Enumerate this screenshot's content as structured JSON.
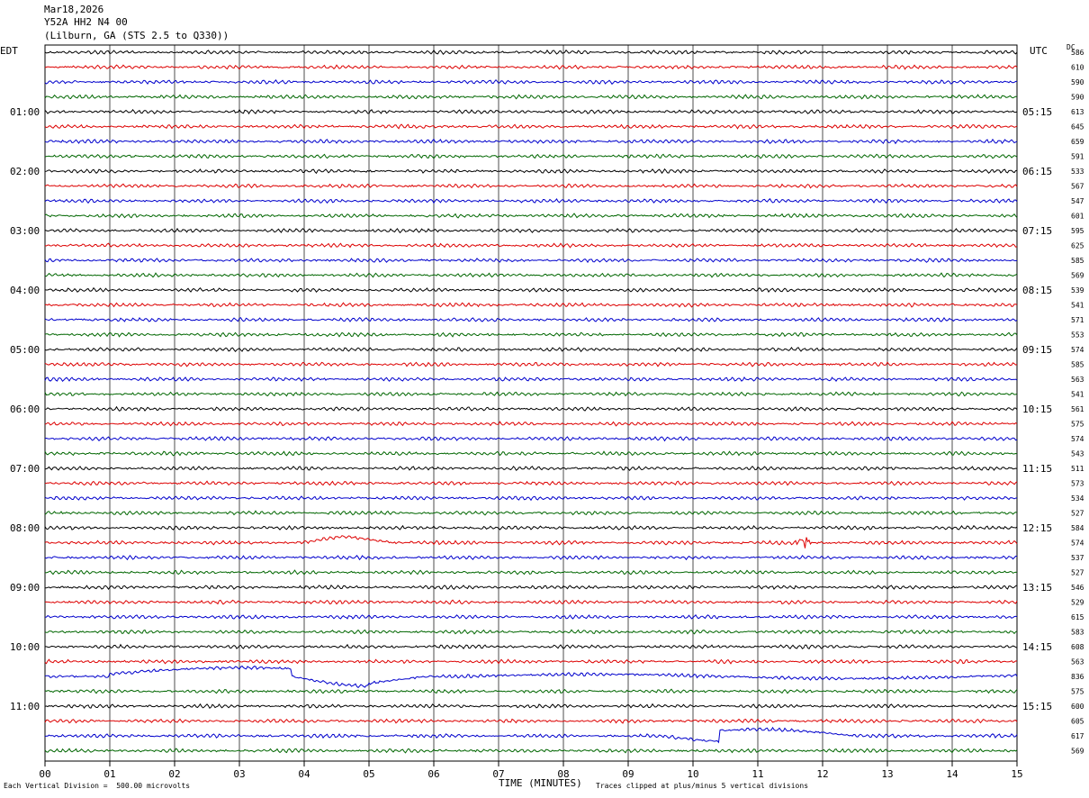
{
  "header": {
    "date": "Mar18,2026",
    "station": "Y52A HH2 N4 00",
    "location": "(Lilburn, GA (STS 2.5 to Q330))"
  },
  "left_axis_label": "EDT",
  "right_axis_label": "UTC",
  "dc_label": "DC",
  "footer": {
    "scale_note": "Each Vertical Division =  500.00 microvolts",
    "xlabel": "TIME (MINUTES)",
    "clip_note": "Traces clipped at plus/minus 5 vertical divisions"
  },
  "colors": {
    "trace_cycle": [
      "#000000",
      "#dd0000",
      "#0000cc",
      "#006600"
    ],
    "grid": "#000000"
  },
  "chart_data": {
    "type": "line",
    "description_free": true,
    "xlim": [
      0,
      15
    ],
    "x_ticks": [
      "00",
      "01",
      "02",
      "03",
      "04",
      "05",
      "06",
      "07",
      "08",
      "09",
      "10",
      "11",
      "12",
      "13",
      "14",
      "15"
    ],
    "left_hour_labels": [
      "01:00",
      "02:00",
      "03:00",
      "04:00",
      "05:00",
      "06:00",
      "07:00",
      "08:00",
      "09:00",
      "10:00",
      "11:00"
    ],
    "right_hour_labels": [
      "05:15",
      "06:15",
      "07:15",
      "08:15",
      "09:15",
      "10:15",
      "11:15",
      "12:15",
      "13:15",
      "14:15",
      "15:15"
    ],
    "traces_per_hour": 4,
    "trace_count": 48,
    "dc_offsets": [
      586,
      610,
      590,
      590,
      613,
      645,
      659,
      591,
      533,
      567,
      547,
      601,
      595,
      625,
      585,
      569,
      539,
      541,
      571,
      553,
      574,
      585,
      563,
      541,
      561,
      575,
      574,
      543,
      511,
      573,
      534,
      527,
      584,
      574,
      537,
      527,
      546,
      529,
      615,
      583,
      608,
      563,
      836,
      575,
      600,
      605,
      617,
      569
    ],
    "events": [
      {
        "trace": 33,
        "shape": "bump",
        "x_start": 3.8,
        "x_end": 5.4,
        "peak": 4.6
      },
      {
        "trace": 33,
        "shape": "burst",
        "x_center": 11.7
      },
      {
        "trace": 42,
        "shape": "long-period",
        "x_start": 1.0,
        "x_end": 15.0
      },
      {
        "trace": 46,
        "shape": "long-period-late",
        "x_start": 9.5,
        "x_end": 12.5
      }
    ]
  }
}
